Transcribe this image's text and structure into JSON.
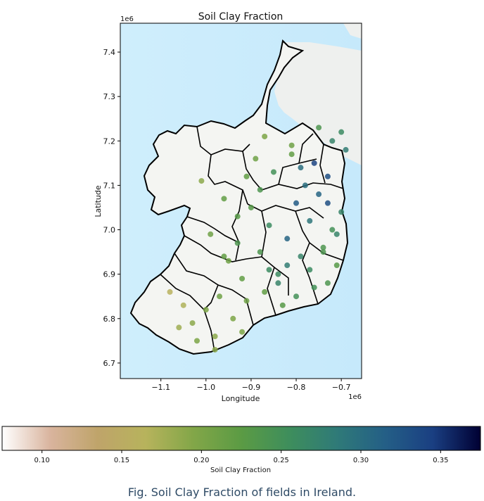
{
  "chart_data": {
    "type": "scatter",
    "title": "Soil Clay Fraction",
    "xlabel": "Longitude",
    "ylabel": "Latitude",
    "x_offset_label": "1e6",
    "y_offset_label": "1e6",
    "xlim": [
      -1.19,
      -0.655
    ],
    "ylim": [
      6.665,
      7.465
    ],
    "xticks": [
      -1.1,
      -1.0,
      -0.9,
      -0.8,
      -0.7
    ],
    "xtick_labels": [
      "−1.1",
      "−1.0",
      "−0.9",
      "−0.8",
      "−0.7"
    ],
    "yticks": [
      6.7,
      6.8,
      6.9,
      7.0,
      7.1,
      7.2,
      7.3,
      7.4
    ],
    "ytick_labels": [
      "6.7",
      "6.8",
      "6.9",
      "7.0",
      "7.1",
      "7.2",
      "7.3",
      "7.4"
    ],
    "colorbar": {
      "label": "Soil Clay Fraction",
      "range": [
        0.075,
        0.375
      ],
      "ticks": [
        0.1,
        0.15,
        0.2,
        0.25,
        0.3,
        0.35
      ],
      "tick_labels": [
        "0.10",
        "0.15",
        "0.20",
        "0.25",
        "0.30",
        "0.35"
      ],
      "colormap": [
        "#ffffff",
        "#d9b49e",
        "#bfa46a",
        "#b7b35c",
        "#82a648",
        "#5b9b44",
        "#3e8e5c",
        "#2f7a78",
        "#245f86",
        "#1a3f82",
        "#000033"
      ]
    },
    "series": [
      {
        "x": [
          -0.73,
          -0.75,
          -0.7,
          -0.72,
          -0.74,
          -0.71,
          -0.76,
          -0.69,
          -0.73,
          -0.78,
          -0.8,
          -0.77,
          -0.82,
          -0.79,
          -0.84,
          -0.85,
          -0.81,
          -0.88,
          -0.9,
          -0.86,
          -0.93,
          -0.95,
          -0.92,
          -0.97,
          -1.0,
          -1.03,
          -0.98,
          -0.94,
          -0.91,
          -0.87,
          -0.83,
          -0.76,
          -0.72,
          -0.7,
          -0.74,
          -0.79,
          -0.82,
          -0.86,
          -0.89,
          -0.96,
          -1.01,
          -0.99,
          -0.93,
          -0.88,
          -0.84,
          -0.8,
          -0.77,
          -0.73,
          -0.71,
          -1.05,
          -1.08,
          -1.06,
          -0.91,
          -0.96,
          -0.87,
          -0.81,
          -0.75,
          -0.92,
          -0.98,
          -1.02
        ],
        "y": [
          7.12,
          7.08,
          7.04,
          7.0,
          6.96,
          6.92,
          7.15,
          7.18,
          6.88,
          7.1,
          7.06,
          7.02,
          6.98,
          6.94,
          6.9,
          7.13,
          7.17,
          7.09,
          7.05,
          7.01,
          6.97,
          6.93,
          6.89,
          6.85,
          6.82,
          6.79,
          6.76,
          6.8,
          6.84,
          6.86,
          6.83,
          6.87,
          7.2,
          7.22,
          6.95,
          7.14,
          6.92,
          6.91,
          7.16,
          7.07,
          7.11,
          6.99,
          7.03,
          6.95,
          6.88,
          6.85,
          6.91,
          7.06,
          6.99,
          6.83,
          6.86,
          6.78,
          7.12,
          6.94,
          7.21,
          7.19,
          7.23,
          6.77,
          6.73,
          6.75
        ],
        "values": [
          0.33,
          0.31,
          0.27,
          0.25,
          0.24,
          0.23,
          0.34,
          0.28,
          0.24,
          0.3,
          0.32,
          0.29,
          0.31,
          0.27,
          0.26,
          0.25,
          0.22,
          0.24,
          0.23,
          0.26,
          0.24,
          0.21,
          0.22,
          0.21,
          0.2,
          0.19,
          0.19,
          0.2,
          0.21,
          0.22,
          0.23,
          0.25,
          0.27,
          0.26,
          0.24,
          0.3,
          0.28,
          0.26,
          0.21,
          0.22,
          0.19,
          0.21,
          0.23,
          0.24,
          0.27,
          0.25,
          0.26,
          0.33,
          0.27,
          0.17,
          0.16,
          0.18,
          0.22,
          0.22,
          0.2,
          0.21,
          0.24,
          0.2,
          0.19,
          0.2
        ]
      }
    ]
  },
  "caption": "Fig. Soil Clay Fraction of fields in Ireland."
}
